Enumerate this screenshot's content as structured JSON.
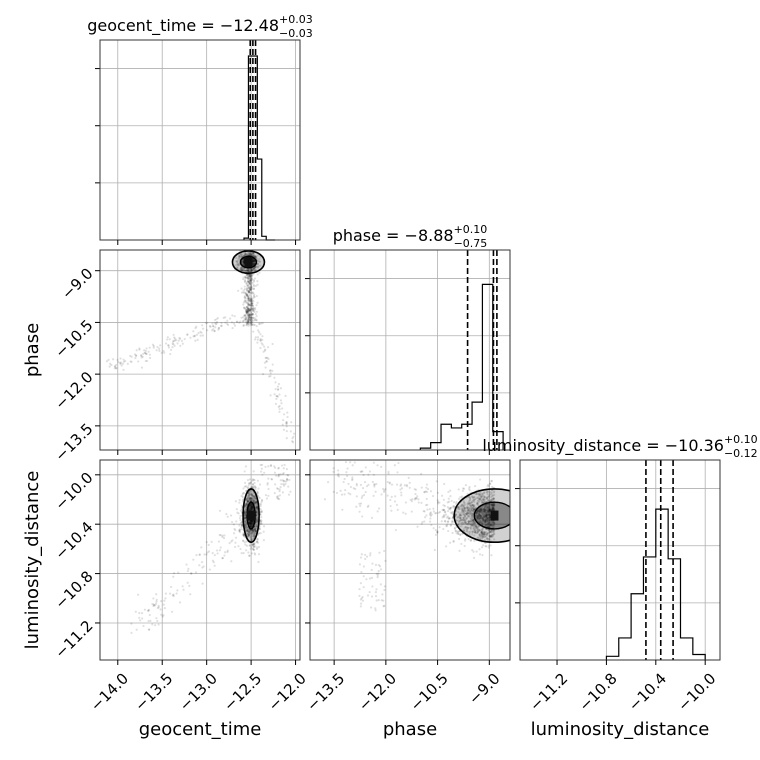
{
  "chart_data": {
    "type": "corner",
    "parameters": [
      {
        "name": "geocent_time",
        "label": "geocent_time",
        "range": [
          -14.2,
          -11.95
        ],
        "ticks": [
          -14.0,
          -13.5,
          -13.0,
          -12.5,
          -12.0
        ],
        "tick_labels": [
          "−14.0",
          "−13.5",
          "−13.0",
          "−12.5",
          "−12.0"
        ],
        "title_main": "geocent_time = −12.48",
        "title_plus": "+0.03",
        "title_minus": "−0.03",
        "quantiles": [
          -12.51,
          -12.48,
          -12.45
        ],
        "hist_edges": [
          -12.58,
          -12.53,
          -12.48,
          -12.43,
          -12.38,
          -12.33,
          -12.28,
          -12.23
        ],
        "hist_counts": [
          0.01,
          1.0,
          1.0,
          0.44,
          0.02,
          0.0,
          0.0
        ]
      },
      {
        "name": "phase",
        "label": "phase",
        "range": [
          -14.2,
          -8.4
        ],
        "ticks": [
          -13.5,
          -12.0,
          -10.5,
          -9.0
        ],
        "tick_labels": [
          "−13.5",
          "−12.0",
          "−10.5",
          "−9.0"
        ],
        "title_main": "phase = −8.88",
        "title_plus": "+0.10",
        "title_minus": "−0.75",
        "quantiles": [
          -9.63,
          -8.88,
          -8.78
        ],
        "hist_edges": [
          -11.0,
          -10.7,
          -10.4,
          -10.1,
          -9.8,
          -9.5,
          -9.2,
          -8.9,
          -8.6
        ],
        "hist_counts": [
          0.01,
          0.04,
          0.14,
          0.12,
          0.14,
          0.26,
          0.9,
          0.1
        ]
      },
      {
        "name": "luminosity_distance",
        "label": "luminosity_distance",
        "range": [
          -11.5,
          -9.88
        ],
        "ticks": [
          -11.2,
          -10.8,
          -10.4,
          -10.0
        ],
        "tick_labels": [
          "−11.2",
          "−10.8",
          "−10.4",
          "−10.0"
        ],
        "title_main": "luminosity_distance = −10.36",
        "title_plus": "+0.10",
        "title_minus": "−0.12",
        "quantiles": [
          -10.48,
          -10.36,
          -10.26
        ],
        "hist_edges": [
          -10.8,
          -10.7,
          -10.6,
          -10.5,
          -10.4,
          -10.3,
          -10.2,
          -10.1,
          -10.0
        ],
        "hist_counts": [
          0.02,
          0.12,
          0.36,
          0.56,
          0.82,
          0.55,
          0.12,
          0.03
        ]
      }
    ],
    "contours": [
      {
        "pair": [
          0,
          1
        ],
        "mode": [
          -12.53,
          -8.75
        ],
        "width": [
          0.1,
          0.18
        ]
      },
      {
        "pair": [
          0,
          2
        ],
        "mode": [
          -12.5,
          -10.33
        ],
        "width": [
          0.05,
          0.12
        ]
      },
      {
        "pair": [
          1,
          2
        ],
        "mode": [
          -8.85,
          -10.33
        ],
        "width": [
          0.65,
          0.12
        ]
      }
    ],
    "grid": true,
    "legend": "none"
  }
}
